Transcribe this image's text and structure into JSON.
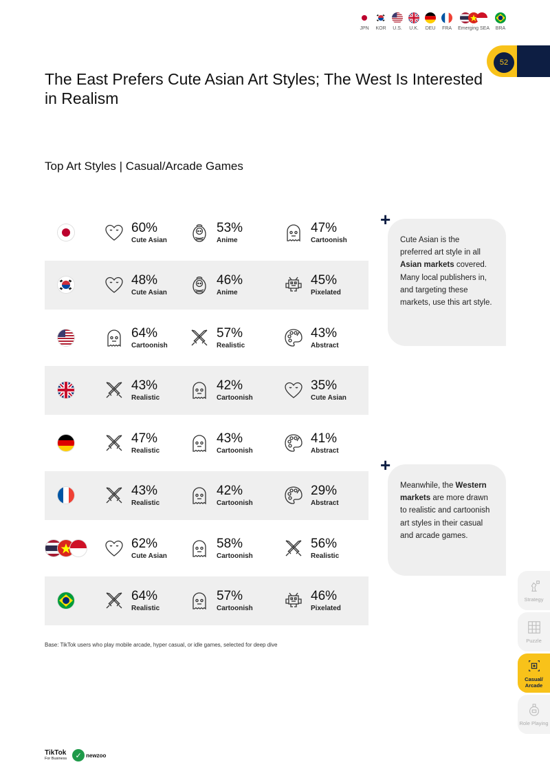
{
  "header_flags": [
    {
      "code": "jp",
      "label": "JPN"
    },
    {
      "code": "kr",
      "label": "KOR"
    },
    {
      "code": "us",
      "label": "U.S."
    },
    {
      "code": "uk",
      "label": "U.K."
    },
    {
      "code": "de",
      "label": "DEU"
    },
    {
      "code": "fr",
      "label": "FRA"
    },
    {
      "code": "sea",
      "label": "Emerging SEA"
    },
    {
      "code": "br",
      "label": "BRA"
    }
  ],
  "page_number": "52",
  "title": "The East Prefers Cute Asian Art Styles; The West Is Interested in Realism",
  "subtitle": "Top Art Styles | Casual/Arcade Games",
  "rows": [
    {
      "flag": "jp",
      "cells": [
        {
          "icon": "heart-icon",
          "pct": "60%",
          "name": "Cute Asian"
        },
        {
          "icon": "doll-icon",
          "pct": "53%",
          "name": "Anime"
        },
        {
          "icon": "ghost-icon",
          "pct": "47%",
          "name": "Cartoonish"
        }
      ]
    },
    {
      "flag": "kr",
      "cells": [
        {
          "icon": "heart-icon",
          "pct": "48%",
          "name": "Cute Asian"
        },
        {
          "icon": "doll-icon",
          "pct": "46%",
          "name": "Anime"
        },
        {
          "icon": "invader-icon",
          "pct": "45%",
          "name": "Pixelated"
        }
      ]
    },
    {
      "flag": "us",
      "cells": [
        {
          "icon": "ghost-icon",
          "pct": "64%",
          "name": "Cartoonish"
        },
        {
          "icon": "swords-icon",
          "pct": "57%",
          "name": "Realistic"
        },
        {
          "icon": "palette-icon",
          "pct": "43%",
          "name": "Abstract"
        }
      ]
    },
    {
      "flag": "uk",
      "cells": [
        {
          "icon": "swords-icon",
          "pct": "43%",
          "name": "Realistic"
        },
        {
          "icon": "ghost-icon",
          "pct": "42%",
          "name": "Cartoonish"
        },
        {
          "icon": "heart-icon",
          "pct": "35%",
          "name": "Cute Asian"
        }
      ]
    },
    {
      "flag": "de",
      "cells": [
        {
          "icon": "swords-icon",
          "pct": "47%",
          "name": "Realistic"
        },
        {
          "icon": "ghost-icon",
          "pct": "43%",
          "name": "Cartoonish"
        },
        {
          "icon": "palette-icon",
          "pct": "41%",
          "name": "Abstract"
        }
      ]
    },
    {
      "flag": "fr",
      "cells": [
        {
          "icon": "swords-icon",
          "pct": "43%",
          "name": "Realistic"
        },
        {
          "icon": "ghost-icon",
          "pct": "42%",
          "name": "Cartoonish"
        },
        {
          "icon": "palette-icon",
          "pct": "29%",
          "name": "Abstract"
        }
      ]
    },
    {
      "flag": "sea",
      "cells": [
        {
          "icon": "heart-icon",
          "pct": "62%",
          "name": "Cute Asian"
        },
        {
          "icon": "ghost-icon",
          "pct": "58%",
          "name": "Cartoonish"
        },
        {
          "icon": "swords-icon",
          "pct": "56%",
          "name": "Realistic"
        }
      ]
    },
    {
      "flag": "br",
      "cells": [
        {
          "icon": "swords-icon",
          "pct": "64%",
          "name": "Realistic"
        },
        {
          "icon": "ghost-icon",
          "pct": "57%",
          "name": "Cartoonish"
        },
        {
          "icon": "invader-icon",
          "pct": "46%",
          "name": "Pixelated"
        }
      ]
    }
  ],
  "callout1": {
    "pre": "Cute Asian is the preferred art style in all ",
    "bold": "Asian markets",
    "post": " covered. Many local publishers in, and targeting these markets, use this art style."
  },
  "callout2": {
    "pre": "Meanwhile, the ",
    "bold": "Western markets",
    "post": " are more drawn to realistic and cartoonish art styles in their casual and arcade games."
  },
  "plus_sign": "+",
  "base_note": "Base: TikTok users who play mobile arcade, hyper casual, or idle games, selected for deep dive",
  "side_nav": [
    {
      "label": "Strategy",
      "active": false
    },
    {
      "label": "Puzzle",
      "active": false
    },
    {
      "label": "Casual/ Arcade",
      "active": true
    },
    {
      "label": "Role Playing",
      "active": false
    }
  ],
  "logos": {
    "tiktok": "TikTok",
    "tiktok_sub": "For Business",
    "newzoo": "newzoo"
  },
  "colors": {
    "navy": "#0d1e43",
    "yellow": "#f8c21a",
    "row_shade": "#efefef"
  }
}
